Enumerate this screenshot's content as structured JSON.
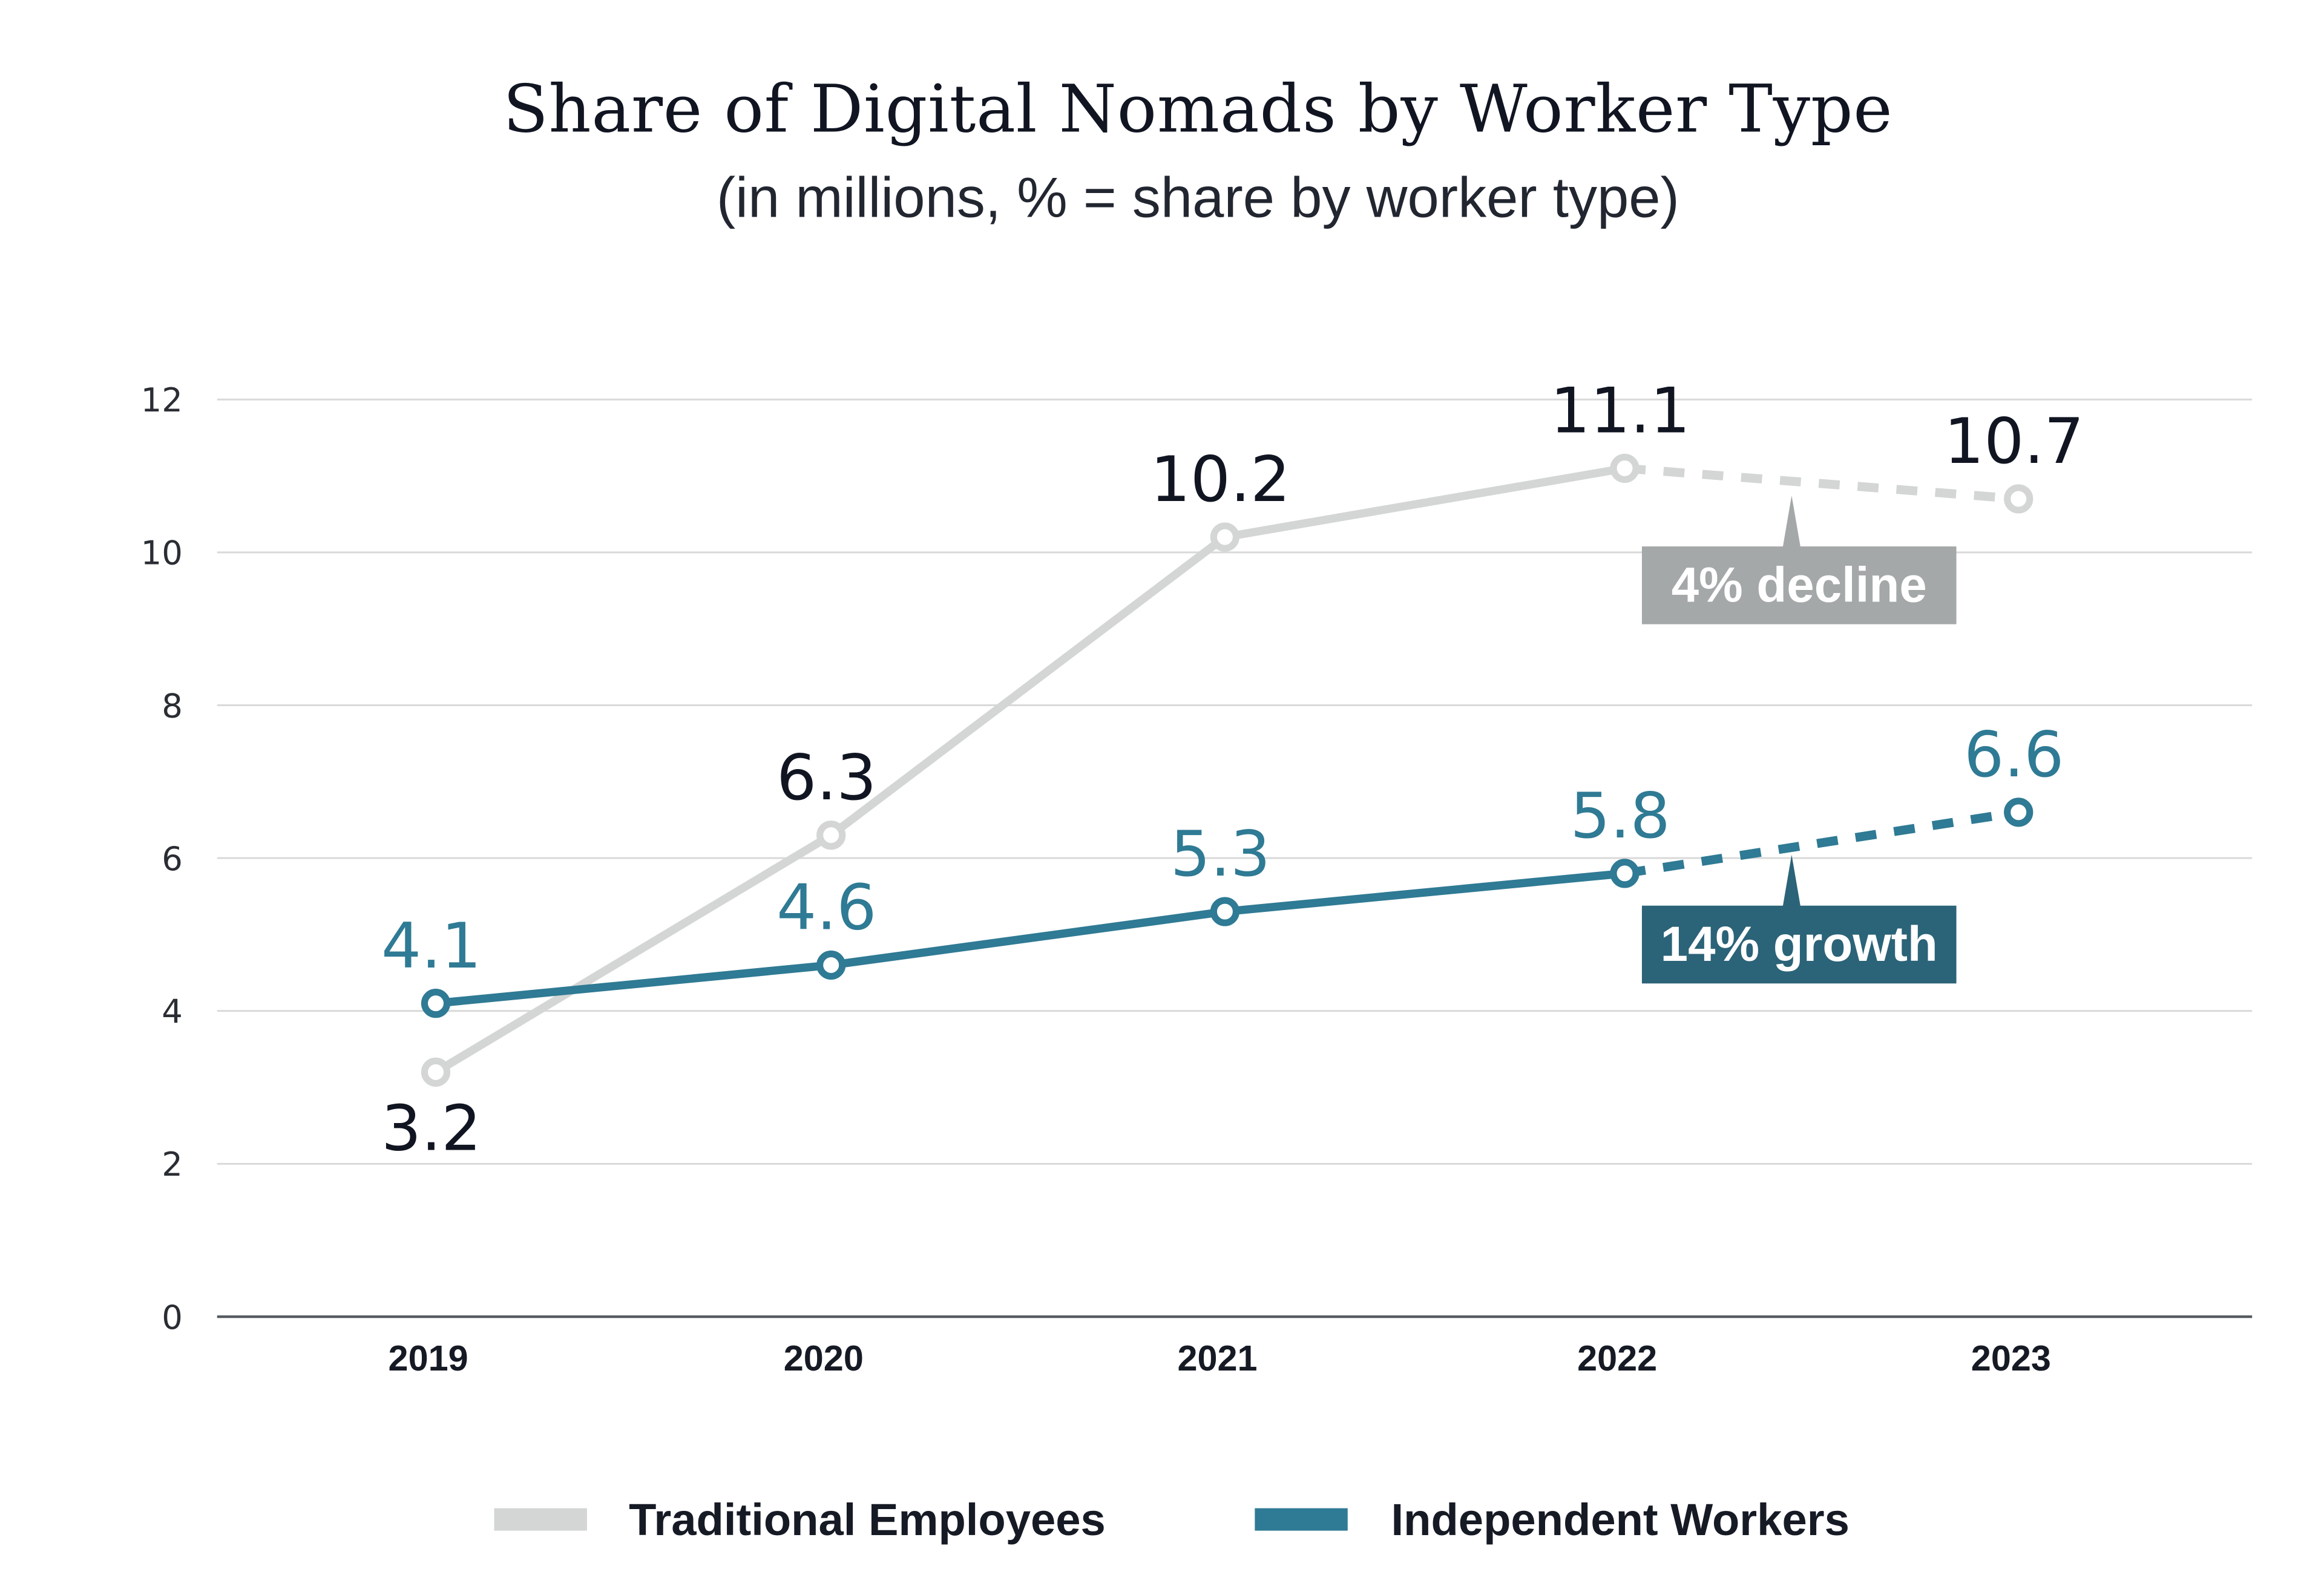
{
  "chart_data": {
    "type": "line",
    "title": "Share of Digital Nomads by Worker Type",
    "subtitle": "(in millions, % = share by worker type)",
    "xlabel": "",
    "ylabel": "",
    "categories": [
      "2019",
      "2020",
      "2021",
      "2022",
      "2023"
    ],
    "ylim": [
      0,
      12
    ],
    "yticks": [
      0,
      2,
      4,
      6,
      8,
      10,
      12
    ],
    "grid": true,
    "legend_position": "bottom-center",
    "series": [
      {
        "name": "Traditional Employees",
        "color": "#d3d6d5",
        "values": [
          3.2,
          6.3,
          10.2,
          11.1,
          10.7
        ],
        "labels": [
          "3.2",
          "6.3",
          "10.2",
          "11.1",
          "10.7"
        ],
        "label_color": "#111522",
        "label_positions": [
          "below",
          "above",
          "above",
          "above",
          "above"
        ],
        "dashed_last_segment": true
      },
      {
        "name": "Independent Workers",
        "color": "#2f7a94",
        "values": [
          4.1,
          4.6,
          5.3,
          5.8,
          6.6
        ],
        "labels": [
          "4.1",
          "4.6",
          "5.3",
          "5.8",
          "6.6"
        ],
        "label_color": "#2f7a94",
        "label_positions": [
          "above",
          "above",
          "above",
          "above",
          "above"
        ],
        "dashed_last_segment": true
      }
    ],
    "annotations": [
      {
        "text": "4% decline",
        "series": "Traditional Employees",
        "segment": [
          "2022",
          "2023"
        ],
        "placement": "below",
        "background": "#a5a8a8",
        "color": "#ffffff"
      },
      {
        "text": "14% growth",
        "series": "Independent Workers",
        "segment": [
          "2022",
          "2023"
        ],
        "placement": "below",
        "background": "#2b6378",
        "color": "#ffffff"
      }
    ]
  },
  "colors": {
    "grid": "#d9d9d9",
    "axis": "#555a5e",
    "text": "#111522"
  }
}
